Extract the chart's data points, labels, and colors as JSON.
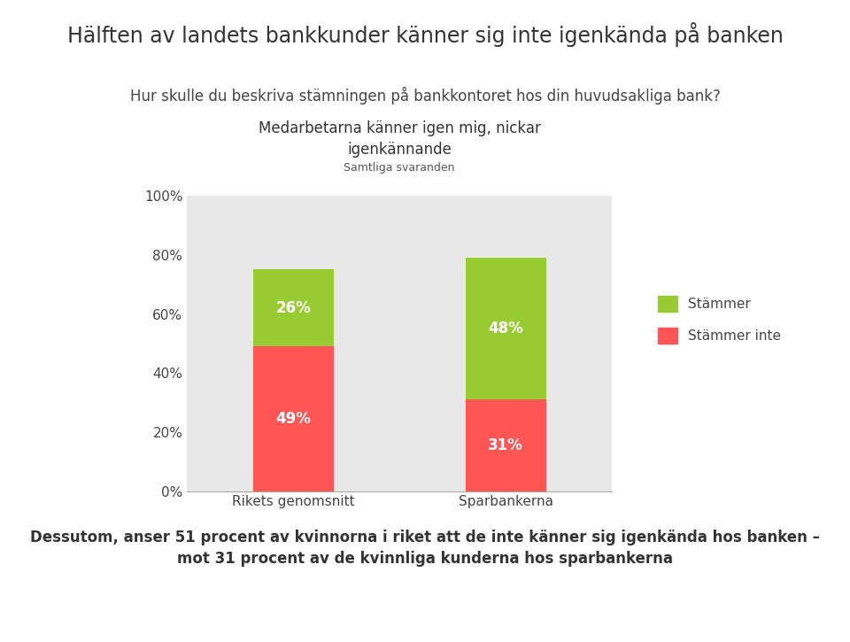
{
  "title": "Hälften av landets bankkunder känner sig inte igenkända på banken",
  "subtitle": "Hur skulle du beskriva stämningen på bankkontoret hos din huvudsakliga bank?",
  "chart_title": "Medarbetarna känner igen mig, nickar\nigenkännande",
  "chart_subtitle": "Samtliga svaranden",
  "categories": [
    "Rikets genomsnitt",
    "Sparbankerna"
  ],
  "stammer_inte": [
    49,
    31
  ],
  "stammer": [
    26,
    48
  ],
  "stammer_color": "#99cc33",
  "stammer_inte_color": "#ff5555",
  "legend_stammer": "Stämmer",
  "legend_stammer_inte": "Stämmer inte",
  "footer_line1": "Dessutom, anser 51 procent av kvinnorna i riket att de inte känner sig igenkända hos banken –",
  "footer_line2": "mot 31 procent av de kvinnliga kunderna hos sparbankerna",
  "background_color": "#ffffff",
  "plot_bg_color": "#e8e8e8",
  "bar_width": 0.38,
  "ylim": [
    0,
    100
  ],
  "yticks": [
    0,
    20,
    40,
    60,
    80,
    100
  ],
  "ytick_labels": [
    "0%",
    "20%",
    "40%",
    "60%",
    "80%",
    "100%"
  ],
  "separator_color": "#6b8e3e",
  "title_color": "#333333",
  "text_color": "#444444",
  "label_color": "#555555"
}
